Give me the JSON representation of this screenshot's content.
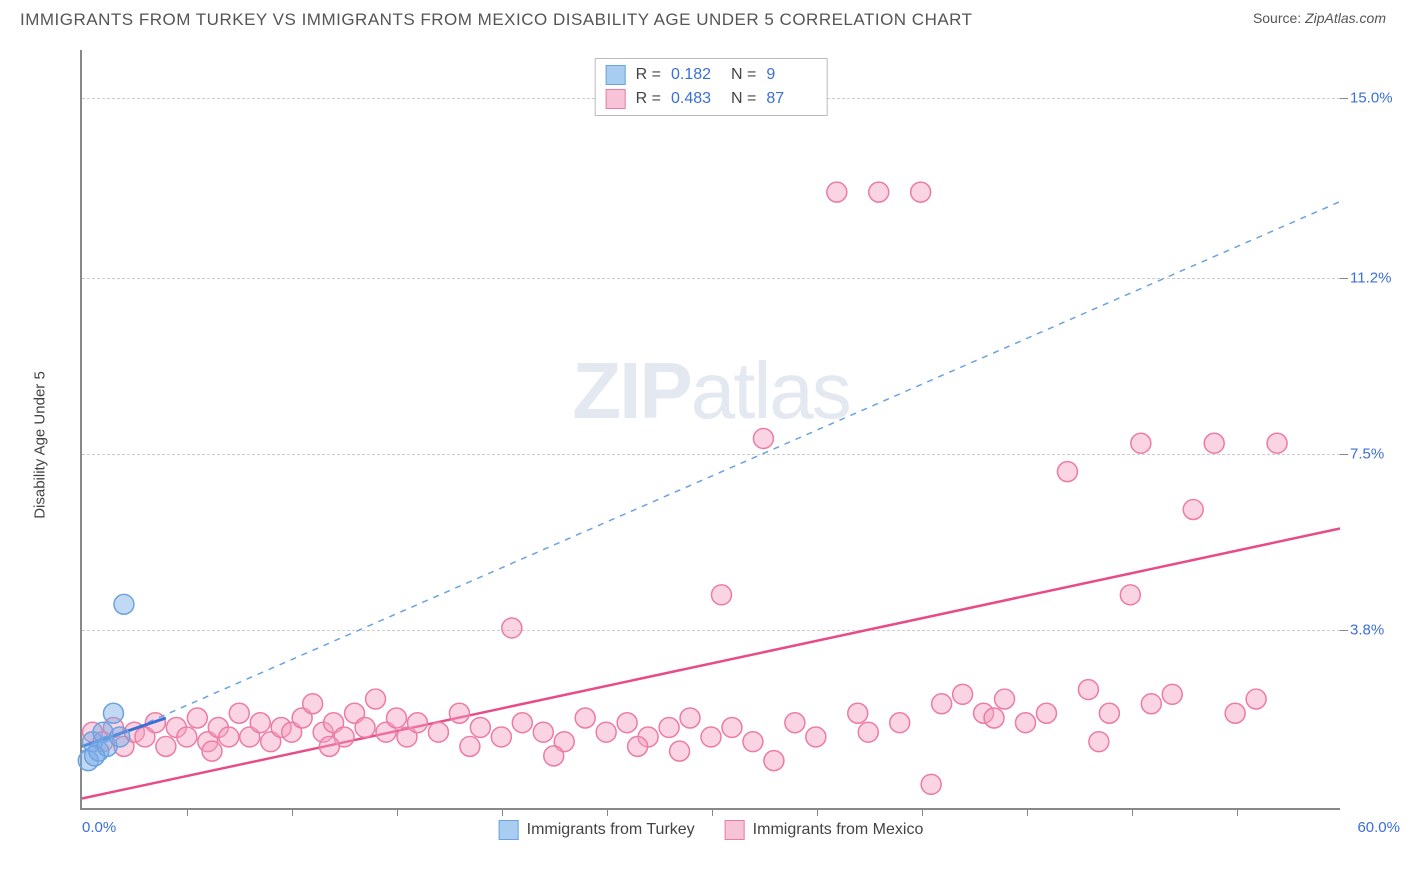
{
  "header": {
    "title": "IMMIGRANTS FROM TURKEY VS IMMIGRANTS FROM MEXICO DISABILITY AGE UNDER 5 CORRELATION CHART",
    "source_label": "Source:",
    "source_value": "ZipAtlas.com"
  },
  "chart": {
    "type": "scatter",
    "y_axis_title": "Disability Age Under 5",
    "xlim": [
      0,
      60
    ],
    "ylim": [
      0,
      16
    ],
    "x_start_label": "0.0%",
    "x_end_label": "60.0%",
    "x_tick_step": 5,
    "y_grid_values": [
      3.8,
      7.5,
      11.2,
      15.0
    ],
    "y_grid_labels": [
      "3.8%",
      "7.5%",
      "11.2%",
      "15.0%"
    ],
    "background_color": "#ffffff",
    "grid_color": "#cccccc",
    "axis_color": "#888888",
    "label_color_blue": "#3a6fd8",
    "watermark_text_bold": "ZIP",
    "watermark_text_rest": "atlas",
    "series": [
      {
        "name": "Immigrants from Turkey",
        "fill_color": "rgba(120,170,230,0.45)",
        "stroke_color": "#6aa3e0",
        "swatch_fill": "#a8cdf0",
        "swatch_stroke": "#6aa3e0",
        "marker_radius": 10,
        "R": "0.182",
        "N": "9",
        "trend_line": {
          "x1": 0,
          "y1": 1.2,
          "x2": 60,
          "y2": 12.8,
          "color": "#6aa3e0",
          "dash": "6,6",
          "width": 1.5
        },
        "short_line": {
          "x1": 0,
          "y1": 1.3,
          "x2": 4,
          "y2": 1.9,
          "color": "#3a6fd8",
          "width": 3
        },
        "points": [
          [
            0.3,
            1.0
          ],
          [
            0.5,
            1.4
          ],
          [
            0.8,
            1.2
          ],
          [
            1.0,
            1.6
          ],
          [
            1.2,
            1.3
          ],
          [
            1.5,
            2.0
          ],
          [
            1.8,
            1.5
          ],
          [
            2.0,
            4.3
          ],
          [
            0.6,
            1.1
          ]
        ]
      },
      {
        "name": "Immigrants from Mexico",
        "fill_color": "rgba(245,160,190,0.45)",
        "stroke_color": "#ec7ba5",
        "swatch_fill": "#f7c3d6",
        "swatch_stroke": "#ec7ba5",
        "marker_radius": 10,
        "R": "0.483",
        "N": "87",
        "trend_line": {
          "x1": 0,
          "y1": 0.2,
          "x2": 60,
          "y2": 5.9,
          "color": "#e84c88",
          "dash": "",
          "width": 2.5
        },
        "points": [
          [
            0.5,
            1.6
          ],
          [
            1.0,
            1.4
          ],
          [
            1.5,
            1.7
          ],
          [
            2.0,
            1.3
          ],
          [
            2.5,
            1.6
          ],
          [
            3.0,
            1.5
          ],
          [
            3.5,
            1.8
          ],
          [
            4.0,
            1.3
          ],
          [
            4.5,
            1.7
          ],
          [
            5.0,
            1.5
          ],
          [
            5.5,
            1.9
          ],
          [
            6.0,
            1.4
          ],
          [
            6.5,
            1.7
          ],
          [
            7.0,
            1.5
          ],
          [
            7.5,
            2.0
          ],
          [
            8.0,
            1.5
          ],
          [
            8.5,
            1.8
          ],
          [
            9.0,
            1.4
          ],
          [
            9.5,
            1.7
          ],
          [
            10,
            1.6
          ],
          [
            10.5,
            1.9
          ],
          [
            11,
            2.2
          ],
          [
            11.5,
            1.6
          ],
          [
            12,
            1.8
          ],
          [
            12.5,
            1.5
          ],
          [
            13,
            2.0
          ],
          [
            13.5,
            1.7
          ],
          [
            14,
            2.3
          ],
          [
            14.5,
            1.6
          ],
          [
            15,
            1.9
          ],
          [
            15.5,
            1.5
          ],
          [
            16,
            1.8
          ],
          [
            17,
            1.6
          ],
          [
            18,
            2.0
          ],
          [
            19,
            1.7
          ],
          [
            20,
            1.5
          ],
          [
            20.5,
            3.8
          ],
          [
            21,
            1.8
          ],
          [
            22,
            1.6
          ],
          [
            23,
            1.4
          ],
          [
            24,
            1.9
          ],
          [
            25,
            1.6
          ],
          [
            26,
            1.8
          ],
          [
            27,
            1.5
          ],
          [
            28,
            1.7
          ],
          [
            29,
            1.9
          ],
          [
            30,
            1.5
          ],
          [
            30.5,
            4.5
          ],
          [
            31,
            1.7
          ],
          [
            32,
            1.4
          ],
          [
            33,
            1.0
          ],
          [
            34,
            1.8
          ],
          [
            35,
            1.5
          ],
          [
            36,
            13.0
          ],
          [
            37,
            2.0
          ],
          [
            38,
            13.0
          ],
          [
            39,
            1.8
          ],
          [
            40,
            13.0
          ],
          [
            41,
            2.2
          ],
          [
            42,
            2.4
          ],
          [
            43,
            2.0
          ],
          [
            44,
            2.3
          ],
          [
            45,
            1.8
          ],
          [
            46,
            2.0
          ],
          [
            47,
            7.1
          ],
          [
            48,
            2.5
          ],
          [
            49,
            2.0
          ],
          [
            50,
            4.5
          ],
          [
            50.5,
            7.7
          ],
          [
            51,
            2.2
          ],
          [
            52,
            2.4
          ],
          [
            53,
            6.3
          ],
          [
            54,
            7.7
          ],
          [
            55,
            2.0
          ],
          [
            56,
            2.3
          ],
          [
            57,
            7.7
          ],
          [
            40.5,
            0.5
          ],
          [
            32.5,
            7.8
          ],
          [
            28.5,
            1.2
          ],
          [
            18.5,
            1.3
          ],
          [
            6.2,
            1.2
          ],
          [
            11.8,
            1.3
          ],
          [
            22.5,
            1.1
          ],
          [
            37.5,
            1.6
          ],
          [
            43.5,
            1.9
          ],
          [
            48.5,
            1.4
          ],
          [
            26.5,
            1.3
          ]
        ]
      }
    ],
    "stats_legend": {
      "R_label": "R  =",
      "N_label": "N  ="
    },
    "bottom_legend_labels": [
      "Immigrants from Turkey",
      "Immigrants from Mexico"
    ]
  }
}
